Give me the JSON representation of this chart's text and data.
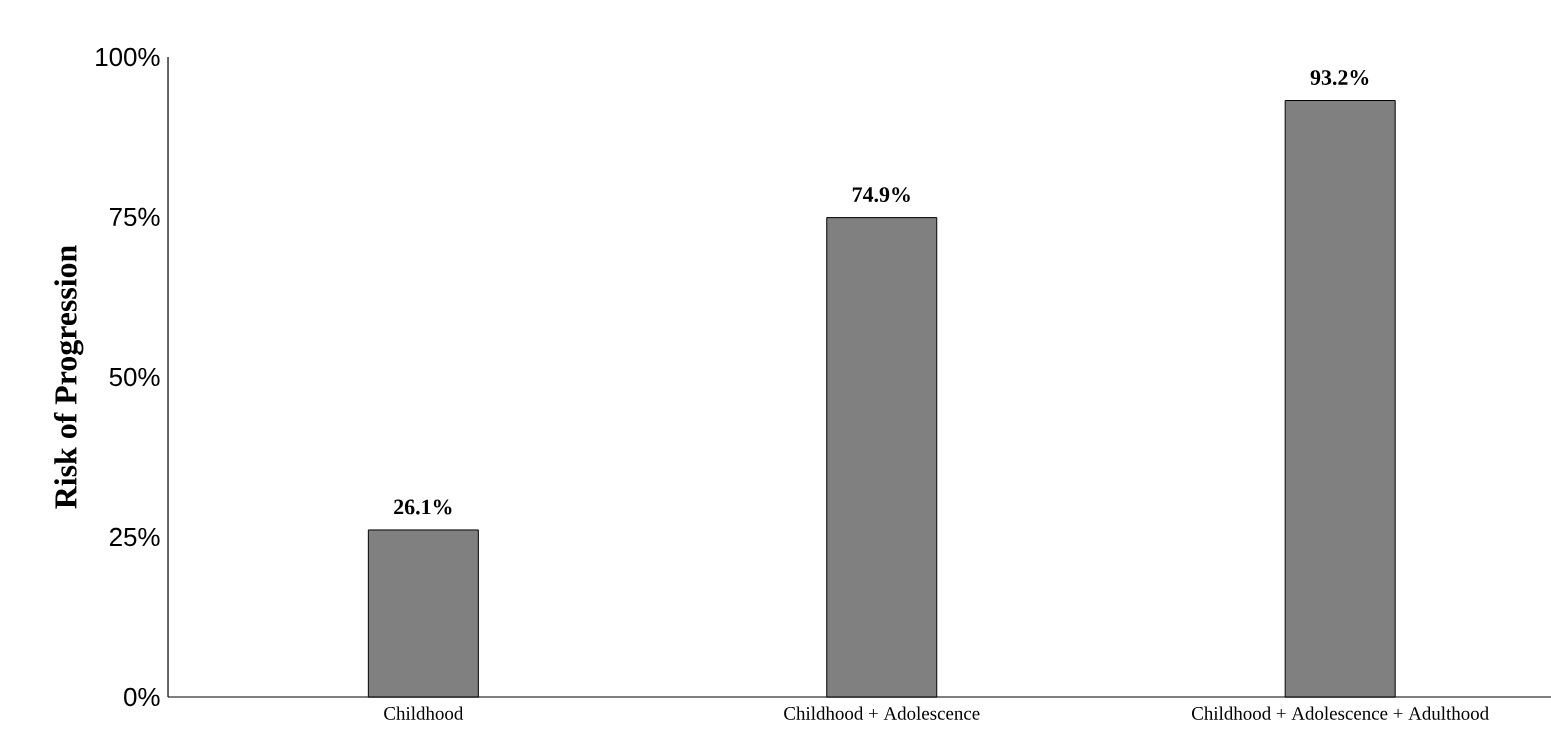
{
  "chart_data": {
    "type": "bar",
    "ylabel": "Risk of Progression",
    "categories": [
      "Childhood",
      "Childhood + Adolescence",
      "Childhood + Adolescence + Adulthood"
    ],
    "values": [
      26.1,
      74.9,
      93.2
    ],
    "value_labels": [
      "26.1%",
      "74.9%",
      "93.2%"
    ],
    "color": "#808080",
    "ylim": [
      0,
      100
    ],
    "yticks": [
      {
        "value": 0,
        "label": "0%"
      },
      {
        "value": 25,
        "label": "25%"
      },
      {
        "value": 50,
        "label": "50%"
      },
      {
        "value": 75,
        "label": "75%"
      },
      {
        "value": 100,
        "label": "100%"
      }
    ],
    "grid": false
  }
}
